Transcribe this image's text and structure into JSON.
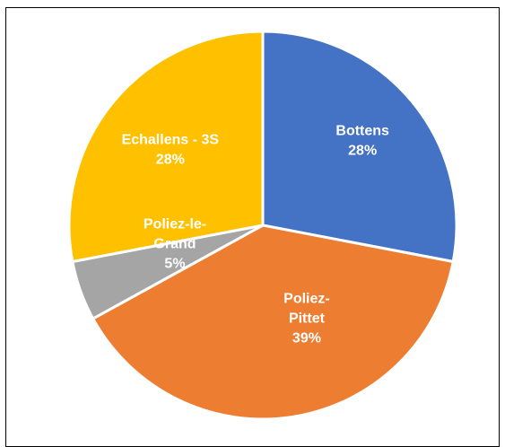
{
  "chart_data": {
    "type": "pie",
    "title": "",
    "slices": [
      {
        "label_lines": [
          "Bottens"
        ],
        "percent_label": "28%",
        "value": 28,
        "color": "#4472C4"
      },
      {
        "label_lines": [
          "Poliez-",
          "Pittet"
        ],
        "percent_label": "39%",
        "value": 39,
        "color": "#ED7D31"
      },
      {
        "label_lines": [
          "Poliez-le-",
          "Grand"
        ],
        "percent_label": "5%",
        "value": 5,
        "color": "#A5A5A5"
      },
      {
        "label_lines": [
          "Echallens - 3S"
        ],
        "percent_label": "28%",
        "value": 28,
        "color": "#FFC000"
      }
    ],
    "legend": "none"
  }
}
